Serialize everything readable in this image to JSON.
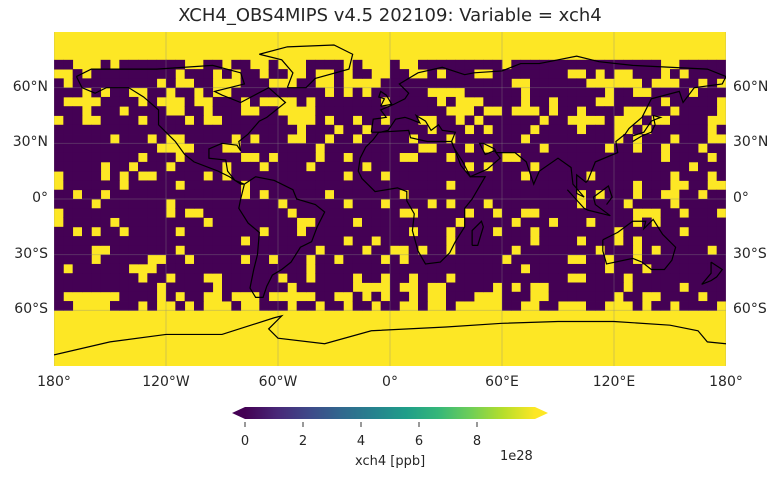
{
  "title": "XCH4_OBS4MIPS v4.5 202109: Variable = xch4",
  "map": {
    "projection": "PlateCarree",
    "extent_lon": [
      -180,
      180
    ],
    "extent_lat": [
      -90,
      90
    ],
    "grid_resolution_deg": 5,
    "lat_labels": [
      "60°N",
      "30°N",
      "0°",
      "30°S",
      "60°S"
    ],
    "lat_values": [
      60,
      30,
      0,
      -30,
      -60
    ],
    "lon_labels": [
      "180°",
      "120°W",
      "60°W",
      "0°",
      "60°E",
      "120°E",
      "180°"
    ],
    "lon_values": [
      -180,
      -120,
      -60,
      0,
      60,
      120,
      180
    ],
    "low_color": "#440154",
    "high_color": "#fde725",
    "coastline_color": "#000000"
  },
  "colorbar": {
    "label": "xch4 [ppb]",
    "offset_text": "1e28",
    "ticks": [
      "0",
      "2",
      "4",
      "6",
      "8"
    ],
    "tick_values": [
      0,
      2,
      4,
      6,
      8
    ],
    "range": [
      0,
      10
    ],
    "extend": "both",
    "colormap": [
      "#440154",
      "#482878",
      "#3e4989",
      "#31688e",
      "#26828e",
      "#1f9e89",
      "#35b779",
      "#6ece58",
      "#b5de2b",
      "#fde725"
    ]
  }
}
